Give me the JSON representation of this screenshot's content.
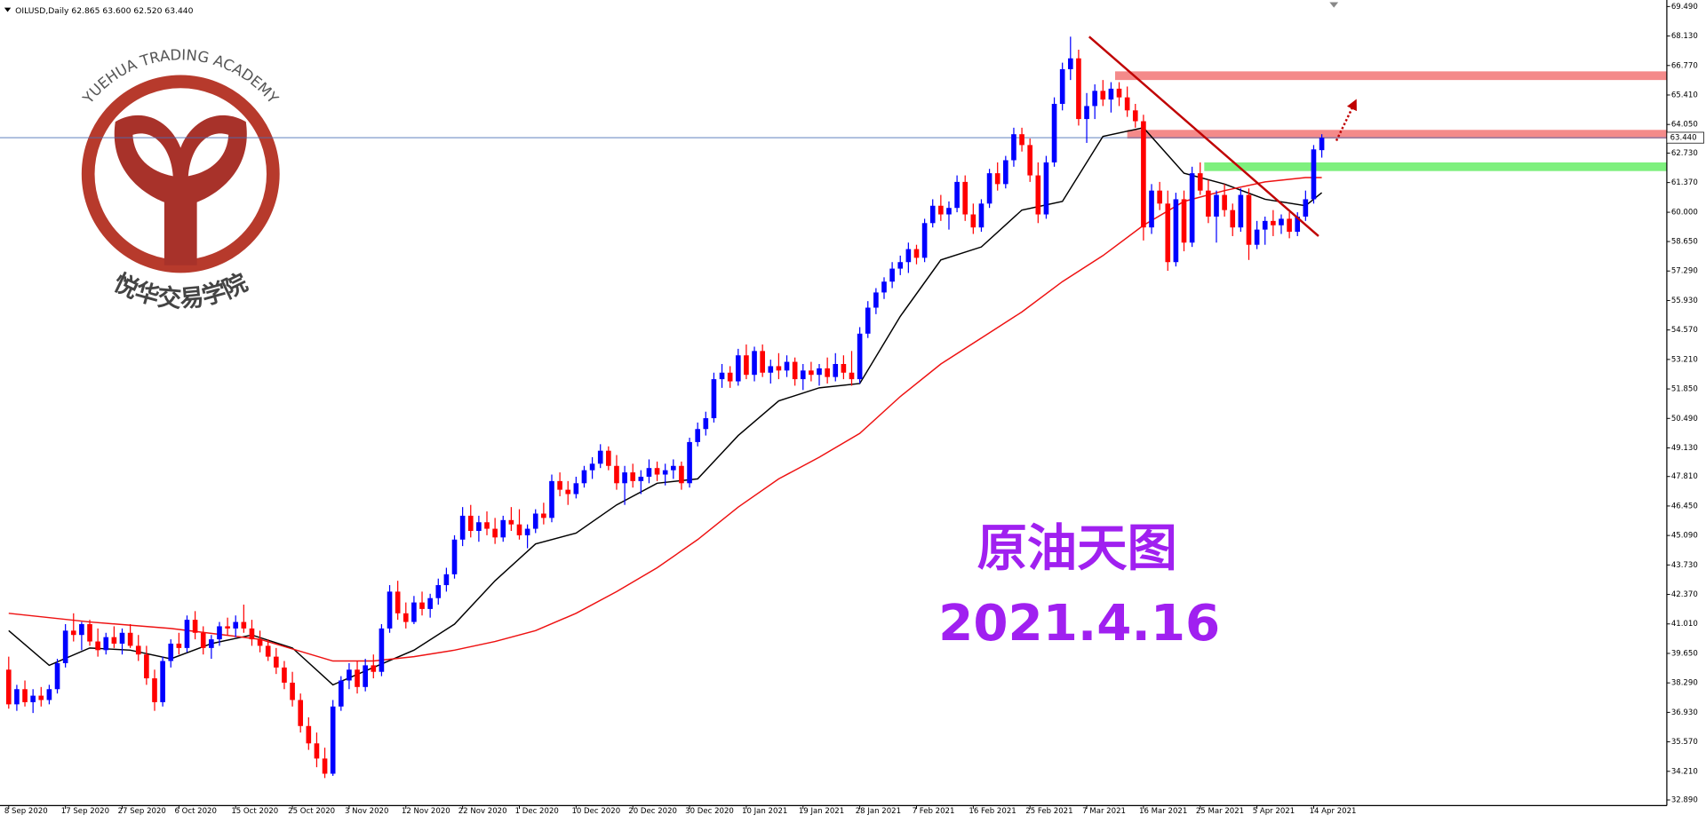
{
  "chart_data": {
    "type": "candlestick",
    "header": "OILUSD,Daily  62.865 63.600 62.520 63.440",
    "watermark_top": "YUEHUA TRADING ACADEMY",
    "watermark_bottom": "悦华交易学院",
    "annotation_title": "原油天图",
    "annotation_date": "2021.4.16",
    "up_color": "#0000ff",
    "down_color": "#ff0000",
    "xlim": [
      -1.074,
      204.57
    ],
    "ylim": [
      32.63,
      69.69
    ],
    "yticks": [
      {
        "value": 69.49,
        "label": "69.490"
      },
      {
        "value": 68.13,
        "label": "68.130"
      },
      {
        "value": 66.77,
        "label": "66.770"
      },
      {
        "value": 65.41,
        "label": "65.410"
      },
      {
        "value": 64.05,
        "label": "64.050"
      },
      {
        "value": 62.73,
        "label": "62.730"
      },
      {
        "value": 61.37,
        "label": "61.370"
      },
      {
        "value": 60.0,
        "label": "60.000"
      },
      {
        "value": 58.65,
        "label": "58.650"
      },
      {
        "value": 57.29,
        "label": "57.290"
      },
      {
        "value": 55.93,
        "label": "55.930"
      },
      {
        "value": 54.57,
        "label": "54.570"
      },
      {
        "value": 53.21,
        "label": "53.210"
      },
      {
        "value": 51.85,
        "label": "51.850"
      },
      {
        "value": 50.49,
        "label": "50.490"
      },
      {
        "value": 49.13,
        "label": "49.130"
      },
      {
        "value": 47.81,
        "label": "47.810"
      },
      {
        "value": 46.45,
        "label": "46.450"
      },
      {
        "value": 45.09,
        "label": "45.090"
      },
      {
        "value": 43.73,
        "label": "43.730"
      },
      {
        "value": 42.37,
        "label": "42.370"
      },
      {
        "value": 41.01,
        "label": "41.010"
      },
      {
        "value": 39.65,
        "label": "39.650"
      },
      {
        "value": 38.29,
        "label": "38.290"
      },
      {
        "value": 36.93,
        "label": "36.930"
      },
      {
        "value": 35.57,
        "label": "35.570"
      },
      {
        "value": 34.21,
        "label": "34.210"
      },
      {
        "value": 32.89,
        "label": "32.890"
      }
    ],
    "xticks": [
      {
        "value": 0,
        "label": "8 Sep 2020"
      },
      {
        "value": 7,
        "label": "17 Sep 2020"
      },
      {
        "value": 14,
        "label": "27 Sep 2020"
      },
      {
        "value": 21,
        "label": "6 Oct 2020"
      },
      {
        "value": 28,
        "label": "15 Oct 2020"
      },
      {
        "value": 35,
        "label": "25 Oct 2020"
      },
      {
        "value": 42,
        "label": "3 Nov 2020"
      },
      {
        "value": 49,
        "label": "12 Nov 2020"
      },
      {
        "value": 56,
        "label": "22 Nov 2020"
      },
      {
        "value": 63,
        "label": "1 Dec 2020"
      },
      {
        "value": 70,
        "label": "10 Dec 2020"
      },
      {
        "value": 77,
        "label": "20 Dec 2020"
      },
      {
        "value": 84,
        "label": "30 Dec 2020"
      },
      {
        "value": 91,
        "label": "10 Jan 2021"
      },
      {
        "value": 98,
        "label": "19 Jan 2021"
      },
      {
        "value": 105,
        "label": "28 Jan 2021"
      },
      {
        "value": 112,
        "label": "7 Feb 2021"
      },
      {
        "value": 119,
        "label": "16 Feb 2021"
      },
      {
        "value": 126,
        "label": "25 Feb 2021"
      },
      {
        "value": 133,
        "label": "7 Mar 2021"
      },
      {
        "value": 140,
        "label": "16 Mar 2021"
      },
      {
        "value": 147,
        "label": "25 Mar 2021"
      },
      {
        "value": 154,
        "label": "5 Apr 2021"
      },
      {
        "value": 161,
        "label": "14 Apr 2021"
      }
    ],
    "current_price": {
      "value": 63.44,
      "label": "63.440",
      "color": "#4a6fb5"
    },
    "ohlc": [
      [
        38.9,
        39.5,
        37.1,
        37.3
      ],
      [
        37.3,
        38.2,
        37.0,
        38.0
      ],
      [
        38.0,
        38.4,
        37.2,
        37.4
      ],
      [
        37.4,
        38.0,
        36.9,
        37.7
      ],
      [
        37.7,
        38.1,
        37.2,
        37.5
      ],
      [
        37.5,
        38.2,
        37.3,
        38.0
      ],
      [
        38.0,
        39.4,
        37.8,
        39.2
      ],
      [
        39.2,
        41.0,
        39.0,
        40.7
      ],
      [
        40.7,
        41.5,
        40.2,
        40.5
      ],
      [
        40.5,
        41.1,
        39.8,
        41.0
      ],
      [
        41.0,
        41.2,
        40.0,
        40.2
      ],
      [
        40.2,
        40.8,
        39.5,
        39.8
      ],
      [
        39.8,
        40.6,
        39.6,
        40.4
      ],
      [
        40.4,
        40.9,
        39.9,
        40.1
      ],
      [
        40.1,
        40.8,
        39.6,
        40.6
      ],
      [
        40.6,
        41.0,
        39.9,
        40.0
      ],
      [
        40.0,
        40.5,
        39.3,
        39.6
      ],
      [
        39.6,
        40.0,
        38.2,
        38.5
      ],
      [
        38.5,
        38.9,
        37.0,
        37.4
      ],
      [
        37.4,
        39.5,
        37.2,
        39.3
      ],
      [
        39.3,
        40.3,
        39.0,
        40.1
      ],
      [
        40.1,
        40.6,
        39.6,
        39.9
      ],
      [
        39.9,
        41.4,
        39.7,
        41.2
      ],
      [
        41.2,
        41.6,
        40.3,
        40.6
      ],
      [
        40.6,
        40.9,
        39.6,
        39.9
      ],
      [
        39.9,
        40.5,
        39.4,
        40.3
      ],
      [
        40.3,
        41.1,
        40.0,
        40.9
      ],
      [
        40.9,
        41.3,
        40.5,
        40.8
      ],
      [
        40.8,
        41.4,
        40.4,
        41.1
      ],
      [
        41.1,
        41.9,
        40.6,
        40.8
      ],
      [
        40.8,
        41.2,
        40.0,
        40.3
      ],
      [
        40.3,
        40.7,
        39.7,
        40.0
      ],
      [
        40.0,
        40.3,
        39.3,
        39.5
      ],
      [
        39.5,
        39.9,
        38.7,
        39.0
      ],
      [
        39.0,
        39.3,
        38.0,
        38.3
      ],
      [
        38.3,
        38.8,
        37.2,
        37.5
      ],
      [
        37.5,
        37.8,
        36.0,
        36.3
      ],
      [
        36.3,
        36.7,
        35.2,
        35.5
      ],
      [
        35.5,
        36.0,
        34.4,
        34.8
      ],
      [
        34.8,
        35.3,
        33.9,
        34.1
      ],
      [
        34.1,
        37.5,
        34.0,
        37.2
      ],
      [
        37.2,
        38.6,
        37.0,
        38.4
      ],
      [
        38.4,
        39.2,
        38.0,
        38.9
      ],
      [
        38.9,
        39.3,
        37.8,
        38.1
      ],
      [
        38.1,
        39.4,
        37.9,
        39.1
      ],
      [
        39.1,
        39.6,
        38.5,
        38.8
      ],
      [
        38.8,
        41.0,
        38.6,
        40.8
      ],
      [
        40.8,
        42.8,
        40.6,
        42.5
      ],
      [
        42.5,
        43.0,
        41.2,
        41.5
      ],
      [
        41.5,
        42.0,
        40.8,
        41.1
      ],
      [
        41.1,
        42.3,
        41.0,
        42.0
      ],
      [
        42.0,
        42.5,
        41.4,
        41.7
      ],
      [
        41.7,
        42.4,
        41.3,
        42.2
      ],
      [
        42.2,
        43.1,
        41.9,
        42.8
      ],
      [
        42.8,
        43.6,
        42.5,
        43.3
      ],
      [
        43.3,
        45.1,
        43.1,
        44.9
      ],
      [
        44.9,
        46.4,
        44.6,
        46.0
      ],
      [
        46.0,
        46.5,
        45.0,
        45.3
      ],
      [
        45.3,
        46.0,
        44.8,
        45.7
      ],
      [
        45.7,
        46.2,
        45.1,
        45.4
      ],
      [
        45.4,
        45.9,
        44.7,
        45.0
      ],
      [
        45.0,
        46.0,
        44.8,
        45.8
      ],
      [
        45.8,
        46.4,
        45.3,
        45.6
      ],
      [
        45.6,
        46.3,
        44.9,
        45.1
      ],
      [
        45.1,
        45.6,
        44.5,
        45.4
      ],
      [
        45.4,
        46.3,
        45.2,
        46.1
      ],
      [
        46.1,
        46.6,
        45.6,
        45.9
      ],
      [
        45.9,
        47.9,
        45.7,
        47.6
      ],
      [
        47.6,
        48.0,
        46.9,
        47.2
      ],
      [
        47.2,
        47.6,
        46.5,
        47.0
      ],
      [
        47.0,
        47.8,
        46.8,
        47.5
      ],
      [
        47.5,
        48.3,
        47.3,
        48.1
      ],
      [
        48.1,
        48.7,
        47.7,
        48.4
      ],
      [
        48.4,
        49.3,
        48.2,
        49.0
      ],
      [
        49.0,
        49.2,
        48.1,
        48.3
      ],
      [
        48.3,
        48.8,
        47.2,
        47.5
      ],
      [
        47.5,
        48.3,
        46.5,
        48.0
      ],
      [
        48.0,
        48.4,
        47.3,
        47.6
      ],
      [
        47.6,
        48.1,
        47.0,
        47.8
      ],
      [
        47.8,
        48.6,
        47.5,
        48.2
      ],
      [
        48.2,
        48.5,
        47.6,
        47.9
      ],
      [
        47.9,
        48.4,
        47.4,
        48.1
      ],
      [
        48.1,
        48.6,
        47.7,
        48.3
      ],
      [
        48.3,
        48.5,
        47.2,
        47.5
      ],
      [
        47.5,
        49.6,
        47.3,
        49.4
      ],
      [
        49.4,
        50.3,
        49.2,
        50.0
      ],
      [
        50.0,
        50.8,
        49.7,
        50.5
      ],
      [
        50.5,
        52.6,
        50.3,
        52.3
      ],
      [
        52.3,
        53.0,
        51.9,
        52.6
      ],
      [
        52.6,
        52.9,
        51.9,
        52.2
      ],
      [
        52.2,
        53.7,
        52.0,
        53.4
      ],
      [
        53.4,
        53.9,
        52.3,
        52.5
      ],
      [
        52.5,
        53.8,
        52.2,
        53.6
      ],
      [
        53.6,
        53.9,
        52.4,
        52.6
      ],
      [
        52.6,
        53.2,
        52.1,
        52.9
      ],
      [
        52.9,
        53.5,
        52.3,
        52.7
      ],
      [
        52.7,
        53.4,
        52.4,
        53.1
      ],
      [
        53.1,
        53.3,
        52.0,
        52.3
      ],
      [
        52.3,
        53.0,
        51.8,
        52.7
      ],
      [
        52.7,
        53.1,
        52.2,
        52.5
      ],
      [
        52.5,
        53.0,
        52.0,
        52.8
      ],
      [
        52.8,
        53.3,
        52.1,
        52.4
      ],
      [
        52.4,
        53.5,
        52.2,
        53.0
      ],
      [
        53.0,
        53.4,
        52.3,
        52.6
      ],
      [
        52.6,
        53.6,
        52.0,
        52.3
      ],
      [
        52.3,
        54.7,
        52.1,
        54.4
      ],
      [
        54.4,
        55.9,
        54.2,
        55.6
      ],
      [
        55.6,
        56.5,
        55.3,
        56.3
      ],
      [
        56.3,
        57.0,
        56.0,
        56.8
      ],
      [
        56.8,
        57.7,
        56.5,
        57.4
      ],
      [
        57.4,
        58.0,
        57.1,
        57.7
      ],
      [
        57.7,
        58.6,
        57.2,
        58.3
      ],
      [
        58.3,
        58.5,
        57.6,
        57.9
      ],
      [
        57.9,
        59.7,
        57.7,
        59.5
      ],
      [
        59.5,
        60.6,
        59.3,
        60.3
      ],
      [
        60.3,
        60.8,
        59.6,
        59.9
      ],
      [
        59.9,
        60.5,
        59.2,
        60.2
      ],
      [
        60.2,
        61.7,
        60.0,
        61.4
      ],
      [
        61.4,
        61.7,
        59.6,
        59.9
      ],
      [
        59.9,
        60.4,
        59.0,
        59.3
      ],
      [
        59.3,
        60.6,
        59.1,
        60.4
      ],
      [
        60.4,
        62.0,
        60.2,
        61.8
      ],
      [
        61.8,
        62.3,
        61.0,
        61.3
      ],
      [
        61.3,
        62.6,
        61.1,
        62.4
      ],
      [
        62.4,
        63.9,
        62.1,
        63.6
      ],
      [
        63.6,
        63.9,
        62.8,
        63.1
      ],
      [
        63.1,
        63.4,
        61.4,
        61.7
      ],
      [
        61.7,
        62.3,
        59.5,
        59.9
      ],
      [
        59.9,
        62.6,
        59.7,
        62.3
      ],
      [
        62.3,
        65.3,
        62.1,
        65.0
      ],
      [
        65.0,
        66.9,
        64.7,
        66.6
      ],
      [
        66.6,
        68.1,
        66.1,
        67.1
      ],
      [
        67.1,
        67.5,
        64.0,
        64.3
      ],
      [
        64.3,
        65.5,
        63.2,
        64.9
      ],
      [
        64.9,
        65.9,
        64.3,
        65.6
      ],
      [
        65.6,
        66.1,
        64.9,
        65.2
      ],
      [
        65.2,
        66.0,
        64.6,
        65.7
      ],
      [
        65.7,
        66.0,
        64.9,
        65.3
      ],
      [
        65.3,
        65.8,
        64.4,
        64.7
      ],
      [
        64.7,
        65.0,
        63.9,
        64.2
      ],
      [
        64.2,
        64.5,
        58.7,
        59.3
      ],
      [
        59.3,
        61.3,
        59.0,
        61.0
      ],
      [
        61.0,
        61.4,
        60.1,
        60.4
      ],
      [
        60.4,
        61.0,
        57.3,
        57.7
      ],
      [
        57.7,
        60.9,
        57.5,
        60.6
      ],
      [
        60.6,
        61.0,
        58.2,
        58.6
      ],
      [
        58.6,
        62.1,
        58.4,
        61.8
      ],
      [
        61.8,
        62.3,
        60.8,
        61.0
      ],
      [
        61.0,
        61.5,
        59.5,
        59.8
      ],
      [
        59.8,
        61.0,
        58.6,
        60.8
      ],
      [
        60.8,
        61.3,
        59.8,
        60.1
      ],
      [
        60.1,
        60.4,
        58.9,
        59.3
      ],
      [
        59.3,
        61.1,
        59.1,
        60.8
      ],
      [
        60.8,
        61.1,
        57.8,
        58.5
      ],
      [
        58.5,
        59.6,
        58.3,
        59.2
      ],
      [
        59.2,
        59.8,
        58.5,
        59.6
      ],
      [
        59.6,
        60.1,
        58.9,
        59.4
      ],
      [
        59.4,
        59.9,
        59.0,
        59.7
      ],
      [
        59.7,
        60.0,
        58.8,
        59.1
      ],
      [
        59.1,
        60.0,
        58.9,
        59.8
      ],
      [
        59.8,
        61.0,
        59.6,
        60.6
      ],
      [
        60.6,
        63.1,
        60.4,
        62.9
      ],
      [
        62.865,
        63.6,
        62.52,
        63.44
      ]
    ],
    "lines": [
      {
        "color": "#000000",
        "x": [
          0,
          5,
          10,
          15,
          20,
          25,
          30,
          35,
          40,
          45,
          50,
          55,
          60,
          65,
          70,
          75,
          80,
          85,
          90,
          95,
          100,
          105,
          110,
          115,
          120,
          125,
          130,
          135,
          140,
          145,
          150,
          155,
          160,
          162
        ],
        "values": [
          40.7,
          39.1,
          39.9,
          39.8,
          39.4,
          40.1,
          40.5,
          39.9,
          38.2,
          39.0,
          39.8,
          41.0,
          43.0,
          44.7,
          45.2,
          46.5,
          47.5,
          47.7,
          49.7,
          51.3,
          51.9,
          52.1,
          55.2,
          57.8,
          58.4,
          60.1,
          60.5,
          63.5,
          63.9,
          61.8,
          61.3,
          60.6,
          60.3,
          60.9
        ]
      },
      {
        "color": "#ee1111",
        "x": [
          0,
          10,
          20,
          31,
          40,
          45,
          50,
          55,
          60,
          65,
          70,
          75,
          80,
          85,
          90,
          95,
          100,
          105,
          110,
          115,
          120,
          125,
          130,
          135,
          140,
          145,
          150,
          155,
          160,
          162
        ],
        "values": [
          41.5,
          41.1,
          40.8,
          40.3,
          39.3,
          39.3,
          39.5,
          39.8,
          40.2,
          40.7,
          41.5,
          42.5,
          43.6,
          44.9,
          46.4,
          47.7,
          48.7,
          49.8,
          51.5,
          53.0,
          54.2,
          55.4,
          56.8,
          58.0,
          59.4,
          60.5,
          61.0,
          61.4,
          61.6,
          61.6
        ]
      }
    ],
    "zones": [
      {
        "color": "#f48a8a",
        "x_start": 136.5,
        "y_range": [
          66.1,
          66.5
        ]
      },
      {
        "color": "#f48a8a",
        "x_start": 138,
        "y_range": [
          63.4,
          63.8
        ]
      },
      {
        "color": "#7ef07e",
        "x_start": 147.5,
        "y_range": [
          61.9,
          62.3
        ]
      }
    ],
    "trendlines": [
      {
        "color": "#c00000",
        "x": [
          133.3,
          161.6
        ],
        "values": [
          68.1,
          58.9
        ],
        "arrow": false
      },
      {
        "color": "#c00000",
        "x": [
          163.8,
          166
        ],
        "values": [
          63.3,
          65.0
        ],
        "arrow": true
      }
    ]
  }
}
